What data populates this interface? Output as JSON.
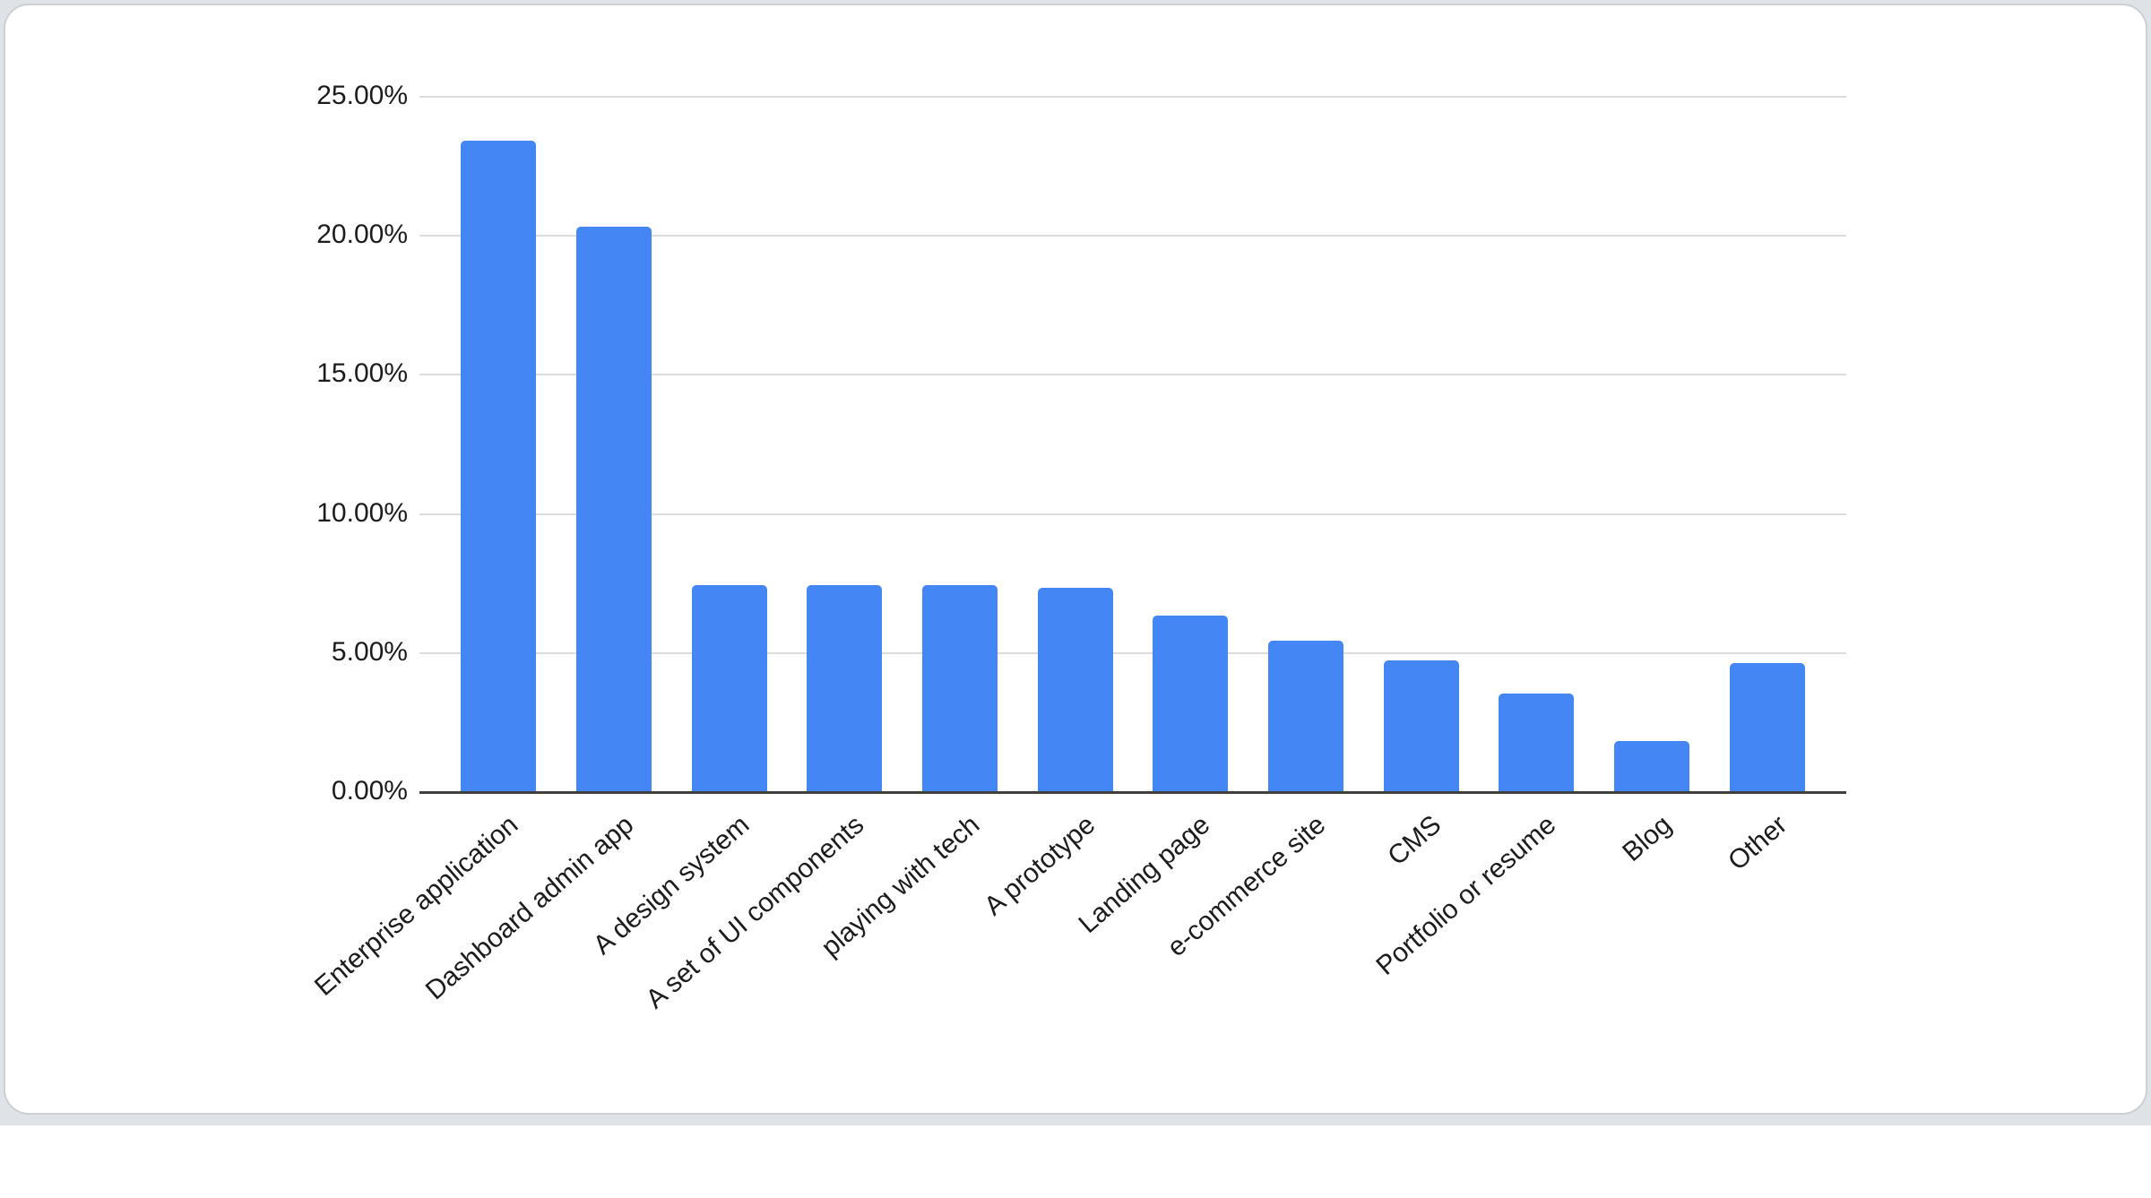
{
  "page": {
    "background_color": "#dfe2e6",
    "card_color": "#ffffff",
    "card_border_color": "#ccd0d5"
  },
  "chart_data": {
    "type": "bar",
    "title": "",
    "xlabel": "",
    "ylabel": "",
    "categories": [
      "Enterprise application",
      "Dashboard admin app",
      "A design system",
      "A set of UI components",
      "playing with tech",
      "A prototype",
      "Landing page",
      "e-commerce site",
      "CMS",
      "Portfolio or resume",
      "Blog",
      "Other"
    ],
    "values": [
      23.4,
      20.3,
      7.4,
      7.4,
      7.4,
      7.3,
      6.3,
      5.4,
      4.7,
      3.5,
      1.8,
      4.6
    ],
    "value_unit": "%",
    "ylim": [
      0,
      25
    ],
    "y_tick_step": 5,
    "y_tick_labels": [
      "0.00%",
      "5.00%",
      "10.00%",
      "15.00%",
      "20.00%",
      "25.00%"
    ],
    "grid": true,
    "legend_position": "none",
    "x_label_rotation_deg": 41,
    "bar_color": "#4486F4",
    "gridline_color": "#dcdcdc",
    "axis_line_color": "#404040",
    "label_color": "#1c1c1c"
  }
}
